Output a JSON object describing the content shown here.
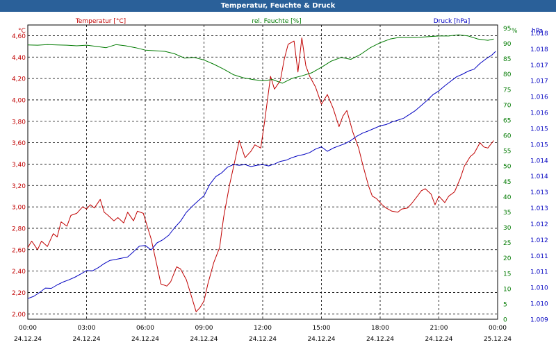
{
  "window": {
    "title": "Temperatur, Feuchte & Druck"
  },
  "colors": {
    "temperature": "#c00000",
    "humidity": "#007a00",
    "pressure": "#0000c0",
    "title_bg": "#2a6099",
    "grid": "#000000"
  },
  "chart_data": {
    "type": "line",
    "title": "Temperatur, Feuchte & Druck",
    "legend": [
      "Temperatur [°C]",
      "rel. Feuchte [%]",
      "Druck [hPa]"
    ],
    "axes": {
      "left": {
        "unit": "°C",
        "range": [
          1.95,
          4.7
        ],
        "ticks": [
          "2,00",
          "2,20",
          "2,40",
          "2,60",
          "2,80",
          "3,00",
          "3,20",
          "3,40",
          "3,60",
          "3,80",
          "4,00",
          "4,20",
          "4,40",
          "4,60"
        ],
        "tick_values": [
          2.0,
          2.2,
          2.4,
          2.6,
          2.8,
          3.0,
          3.2,
          3.4,
          3.6,
          3.8,
          4.0,
          4.2,
          4.4,
          4.6
        ]
      },
      "middle": {
        "unit": "%",
        "range": [
          0,
          96
        ],
        "ticks": [
          "0",
          "5",
          "10",
          "15",
          "20",
          "25",
          "30",
          "35",
          "40",
          "45",
          "50",
          "55",
          "60",
          "65",
          "70",
          "75",
          "80",
          "85",
          "90",
          "95"
        ],
        "tick_values": [
          0,
          5,
          10,
          15,
          20,
          25,
          30,
          35,
          40,
          45,
          50,
          55,
          60,
          65,
          70,
          75,
          80,
          85,
          90,
          95
        ]
      },
      "right": {
        "unit": "hPa",
        "range": [
          1009.0,
          1018.25
        ],
        "ticks": [
          "1.009",
          "1.010",
          "1.010",
          "1.011",
          "1.011",
          "1.012",
          "1.012",
          "1.013",
          "1.013",
          "1.014",
          "1.014",
          "1.015",
          "1.015",
          "1.016",
          "1.016",
          "1.017",
          "1.017",
          "1.018",
          "1.018"
        ],
        "tick_values": [
          1009.0,
          1009.5,
          1010.0,
          1010.5,
          1011.0,
          1011.5,
          1012.0,
          1012.5,
          1013.0,
          1013.5,
          1014.0,
          1014.5,
          1015.0,
          1015.5,
          1016.0,
          1016.5,
          1017.0,
          1017.5,
          1018.0
        ]
      },
      "x": {
        "range": [
          0,
          24
        ],
        "ticks": [
          {
            "time": "00:00",
            "date": "24.12.24",
            "hour": 0
          },
          {
            "time": "03:00",
            "date": "24.12.24",
            "hour": 3
          },
          {
            "time": "06:00",
            "date": "24.12.24",
            "hour": 6
          },
          {
            "time": "09:00",
            "date": "24.12.24",
            "hour": 9
          },
          {
            "time": "12:00",
            "date": "24.12.24",
            "hour": 12
          },
          {
            "time": "15:00",
            "date": "24.12.24",
            "hour": 15
          },
          {
            "time": "18:00",
            "date": "24.12.24",
            "hour": 18
          },
          {
            "time": "21:00",
            "date": "24.12.24",
            "hour": 21
          },
          {
            "time": "00:00",
            "date": "25.12.24",
            "hour": 24
          }
        ]
      }
    },
    "series": [
      {
        "name": "Temperatur [°C]",
        "axis": "left",
        "hours": [
          0.0,
          0.2,
          0.5,
          0.7,
          1.0,
          1.3,
          1.5,
          1.7,
          2.0,
          2.2,
          2.5,
          2.8,
          3.0,
          3.2,
          3.4,
          3.7,
          3.9,
          4.1,
          4.4,
          4.6,
          4.9,
          5.1,
          5.4,
          5.6,
          5.9,
          6.1,
          6.3,
          6.6,
          6.8,
          7.1,
          7.3,
          7.6,
          7.8,
          8.1,
          8.3,
          8.6,
          8.8,
          9.0,
          9.2,
          9.5,
          9.8,
          10.0,
          10.3,
          10.6,
          10.8,
          11.1,
          11.4,
          11.6,
          11.9,
          12.1,
          12.4,
          12.6,
          12.9,
          13.1,
          13.3,
          13.6,
          13.8,
          14.0,
          14.2,
          14.4,
          14.7,
          15.0,
          15.3,
          15.6,
          15.9,
          16.1,
          16.3,
          16.6,
          16.9,
          17.1,
          17.4,
          17.6,
          17.8,
          18.1,
          18.3,
          18.6,
          18.9,
          19.1,
          19.4,
          19.6,
          19.9,
          20.1,
          20.3,
          20.6,
          20.8,
          21.0,
          21.3,
          21.5,
          21.8,
          22.1,
          22.3,
          22.6,
          22.8,
          23.1,
          23.3,
          23.5,
          23.8
        ],
        "values": [
          2.62,
          2.68,
          2.6,
          2.68,
          2.63,
          2.75,
          2.72,
          2.86,
          2.82,
          2.92,
          2.94,
          3.0,
          2.98,
          3.02,
          2.99,
          3.07,
          2.95,
          2.92,
          2.87,
          2.9,
          2.85,
          2.95,
          2.87,
          2.96,
          2.94,
          2.82,
          2.7,
          2.45,
          2.28,
          2.26,
          2.3,
          2.44,
          2.42,
          2.32,
          2.2,
          2.02,
          2.06,
          2.12,
          2.28,
          2.48,
          2.62,
          2.9,
          3.2,
          3.45,
          3.62,
          3.46,
          3.52,
          3.58,
          3.55,
          3.8,
          4.22,
          4.1,
          4.18,
          4.38,
          4.52,
          4.55,
          4.26,
          4.58,
          4.32,
          4.22,
          4.12,
          3.96,
          4.05,
          3.92,
          3.75,
          3.85,
          3.9,
          3.7,
          3.55,
          3.4,
          3.2,
          3.1,
          3.08,
          3.02,
          2.99,
          2.96,
          2.95,
          2.98,
          2.99,
          3.03,
          3.1,
          3.15,
          3.17,
          3.12,
          3.02,
          3.1,
          3.04,
          3.1,
          3.14,
          3.27,
          3.38,
          3.47,
          3.5,
          3.6,
          3.56,
          3.55,
          3.62
        ]
      },
      {
        "name": "rel. Feuchte [%]",
        "axis": "middle",
        "hours": [
          0.0,
          0.5,
          1.0,
          1.5,
          2.0,
          2.5,
          3.0,
          3.5,
          4.0,
          4.5,
          5.0,
          5.5,
          6.0,
          6.5,
          7.0,
          7.5,
          8.0,
          8.5,
          9.0,
          9.5,
          10.0,
          10.5,
          11.0,
          11.5,
          12.0,
          12.5,
          13.0,
          13.5,
          14.0,
          14.5,
          15.0,
          15.5,
          16.0,
          16.5,
          17.0,
          17.5,
          18.0,
          18.5,
          19.0,
          19.5,
          20.0,
          20.5,
          21.0,
          21.5,
          22.0,
          22.5,
          23.0,
          23.5,
          23.8
        ],
        "values": [
          89.5,
          89.4,
          89.6,
          89.5,
          89.4,
          89.2,
          89.4,
          89.0,
          88.6,
          89.6,
          89.2,
          88.6,
          87.8,
          87.6,
          87.4,
          86.6,
          85.2,
          85.4,
          84.6,
          83.2,
          81.6,
          79.8,
          78.8,
          78.2,
          77.8,
          78.2,
          77.0,
          78.6,
          79.4,
          80.4,
          82.2,
          84.2,
          85.4,
          84.8,
          86.4,
          88.6,
          90.2,
          91.4,
          92.0,
          91.9,
          92.0,
          92.2,
          92.4,
          92.4,
          92.8,
          92.4,
          91.4,
          91.0,
          91.4
        ]
      },
      {
        "name": "Druck [hPa]",
        "axis": "right",
        "hours": [
          0.0,
          0.3,
          0.6,
          0.9,
          1.2,
          1.5,
          1.8,
          2.1,
          2.4,
          2.7,
          3.0,
          3.3,
          3.6,
          3.9,
          4.2,
          4.5,
          4.8,
          5.1,
          5.4,
          5.7,
          6.0,
          6.3,
          6.6,
          6.9,
          7.2,
          7.5,
          7.8,
          8.1,
          8.4,
          8.7,
          9.0,
          9.3,
          9.6,
          9.9,
          10.2,
          10.5,
          10.8,
          11.1,
          11.4,
          11.7,
          12.0,
          12.3,
          12.6,
          12.9,
          13.2,
          13.5,
          13.8,
          14.1,
          14.4,
          14.7,
          15.0,
          15.3,
          15.6,
          15.9,
          16.2,
          16.5,
          16.8,
          17.1,
          17.4,
          17.7,
          18.0,
          18.3,
          18.6,
          18.9,
          19.2,
          19.5,
          19.8,
          20.1,
          20.4,
          20.7,
          21.0,
          21.3,
          21.6,
          21.9,
          22.2,
          22.5,
          22.8,
          23.1,
          23.4,
          23.7,
          23.9
        ],
        "values": [
          1009.65,
          1009.72,
          1009.84,
          1009.98,
          1009.97,
          1010.08,
          1010.17,
          1010.24,
          1010.32,
          1010.42,
          1010.53,
          1010.52,
          1010.62,
          1010.75,
          1010.85,
          1010.88,
          1010.92,
          1010.96,
          1011.12,
          1011.3,
          1011.32,
          1011.18,
          1011.4,
          1011.5,
          1011.64,
          1011.88,
          1012.08,
          1012.36,
          1012.55,
          1012.72,
          1012.88,
          1013.24,
          1013.48,
          1013.6,
          1013.78,
          1013.86,
          1013.84,
          1013.86,
          1013.8,
          1013.84,
          1013.86,
          1013.82,
          1013.88,
          1013.96,
          1014.0,
          1014.08,
          1014.14,
          1014.18,
          1014.24,
          1014.35,
          1014.42,
          1014.28,
          1014.38,
          1014.45,
          1014.52,
          1014.62,
          1014.75,
          1014.85,
          1014.92,
          1015.0,
          1015.08,
          1015.12,
          1015.2,
          1015.26,
          1015.32,
          1015.44,
          1015.56,
          1015.72,
          1015.88,
          1016.06,
          1016.18,
          1016.34,
          1016.48,
          1016.62,
          1016.7,
          1016.8,
          1016.86,
          1017.04,
          1017.18,
          1017.3,
          1017.42
        ]
      }
    ]
  }
}
